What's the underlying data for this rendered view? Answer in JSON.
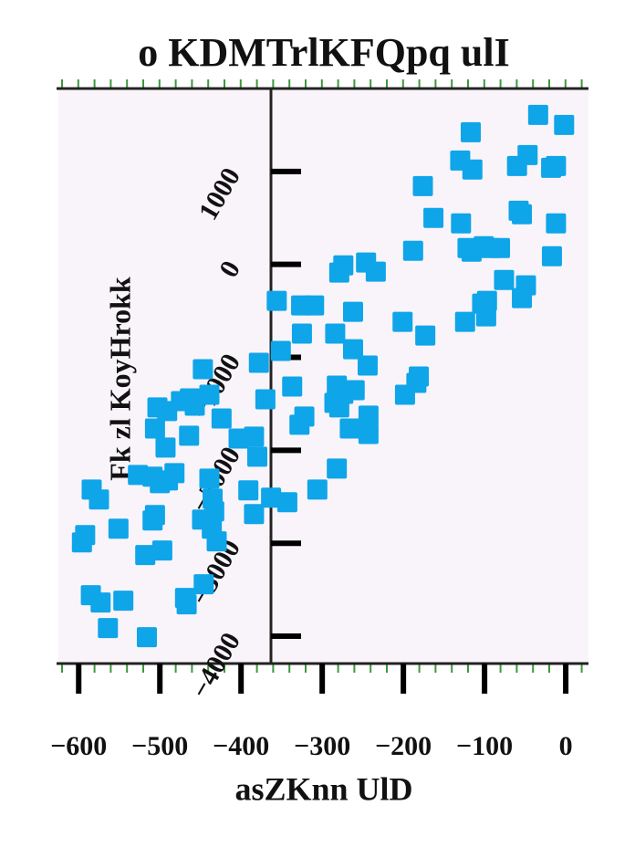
{
  "chart_data": {
    "type": "scatter",
    "title": "o KDMTrlKFQpq ulI",
    "xlabel": "asZKnn UlD",
    "ylabel": "Fk zl KoyHrokk",
    "color": "#0fa5e9",
    "xlim": [
      -625,
      28
    ],
    "ylim": [
      -4294,
      1892
    ],
    "xticks": [
      {
        "value": -600,
        "label": "−600"
      },
      {
        "value": -500,
        "label": "−500"
      },
      {
        "value": -400,
        "label": "−400"
      },
      {
        "value": -300,
        "label": "−300"
      },
      {
        "value": -200,
        "label": "−200"
      },
      {
        "value": -100,
        "label": "−100"
      },
      0
    ],
    "yticks": [
      1000,
      0,
      {
        "value": -1000,
        "label": "−1000"
      },
      {
        "value": -2000,
        "label": "−2000"
      },
      {
        "value": -3000,
        "label": "−3000"
      },
      {
        "value": -4000,
        "label": "−4000"
      }
    ],
    "series": [
      {
        "name": "points",
        "color": "#0fa5e9",
        "x": [
          -34,
          -2,
          -117,
          -47,
          -130,
          -115,
          -60,
          -18,
          -12,
          -176,
          -163,
          -129,
          -58,
          -54,
          -12,
          -188,
          -121,
          -116,
          -101,
          -93,
          -81,
          -17,
          -246,
          -274,
          -279,
          -234,
          -356,
          -326,
          -310,
          -76,
          -97,
          -103,
          -49,
          -54,
          -262,
          -201,
          -173,
          -124,
          -98,
          -325,
          -284,
          -351,
          -262,
          -378,
          -244,
          -447,
          -337,
          -282,
          -274,
          -260,
          -181,
          -184,
          -198,
          -370,
          -474,
          -463,
          -457,
          -439,
          -503,
          -491,
          -285,
          -279,
          -424,
          -322,
          -328,
          -243,
          -243,
          -266,
          -506,
          -464,
          -403,
          -384,
          -493,
          -380,
          -282,
          -527,
          -509,
          -482,
          -500,
          -490,
          -439,
          -584,
          -575,
          -306,
          -391,
          -363,
          -343,
          -435,
          -433,
          -448,
          -506,
          -509,
          -384,
          -436,
          -430,
          -551,
          -592,
          -596,
          -518,
          -497,
          -446,
          -585,
          -573,
          -545,
          -469,
          -467,
          -564,
          -516
        ],
        "values": [
          1608,
          1500,
          1422,
          1176,
          1118,
          1020,
          1059,
          1039,
          1059,
          843,
          500,
          441,
          578,
          539,
          441,
          147,
          176,
          137,
          196,
          176,
          176,
          88,
          20,
          -10,
          -88,
          -78,
          -392,
          -441,
          -441,
          -167,
          -392,
          -422,
          -225,
          -363,
          -510,
          -618,
          -765,
          -618,
          -559,
          -745,
          -745,
          -931,
          -912,
          -1059,
          -1088,
          -1127,
          -1314,
          -1304,
          -1392,
          -1353,
          -1206,
          -1275,
          -1402,
          -1451,
          -1471,
          -1441,
          -1520,
          -1402,
          -1539,
          -1578,
          -1490,
          -1539,
          -1657,
          -1637,
          -1725,
          -1627,
          -1824,
          -1765,
          -1765,
          -1843,
          -1873,
          -1853,
          -1971,
          -2069,
          -2196,
          -2265,
          -2284,
          -2245,
          -2353,
          -2324,
          -2304,
          -2422,
          -2529,
          -2422,
          -2431,
          -2510,
          -2559,
          -2520,
          -2657,
          -2745,
          -2696,
          -2755,
          -2686,
          -2843,
          -2980,
          -2843,
          -2912,
          -2990,
          -3127,
          -3078,
          -3441,
          -3559,
          -3637,
          -3618,
          -3588,
          -3657,
          -3912,
          -4010
        ]
      }
    ]
  }
}
